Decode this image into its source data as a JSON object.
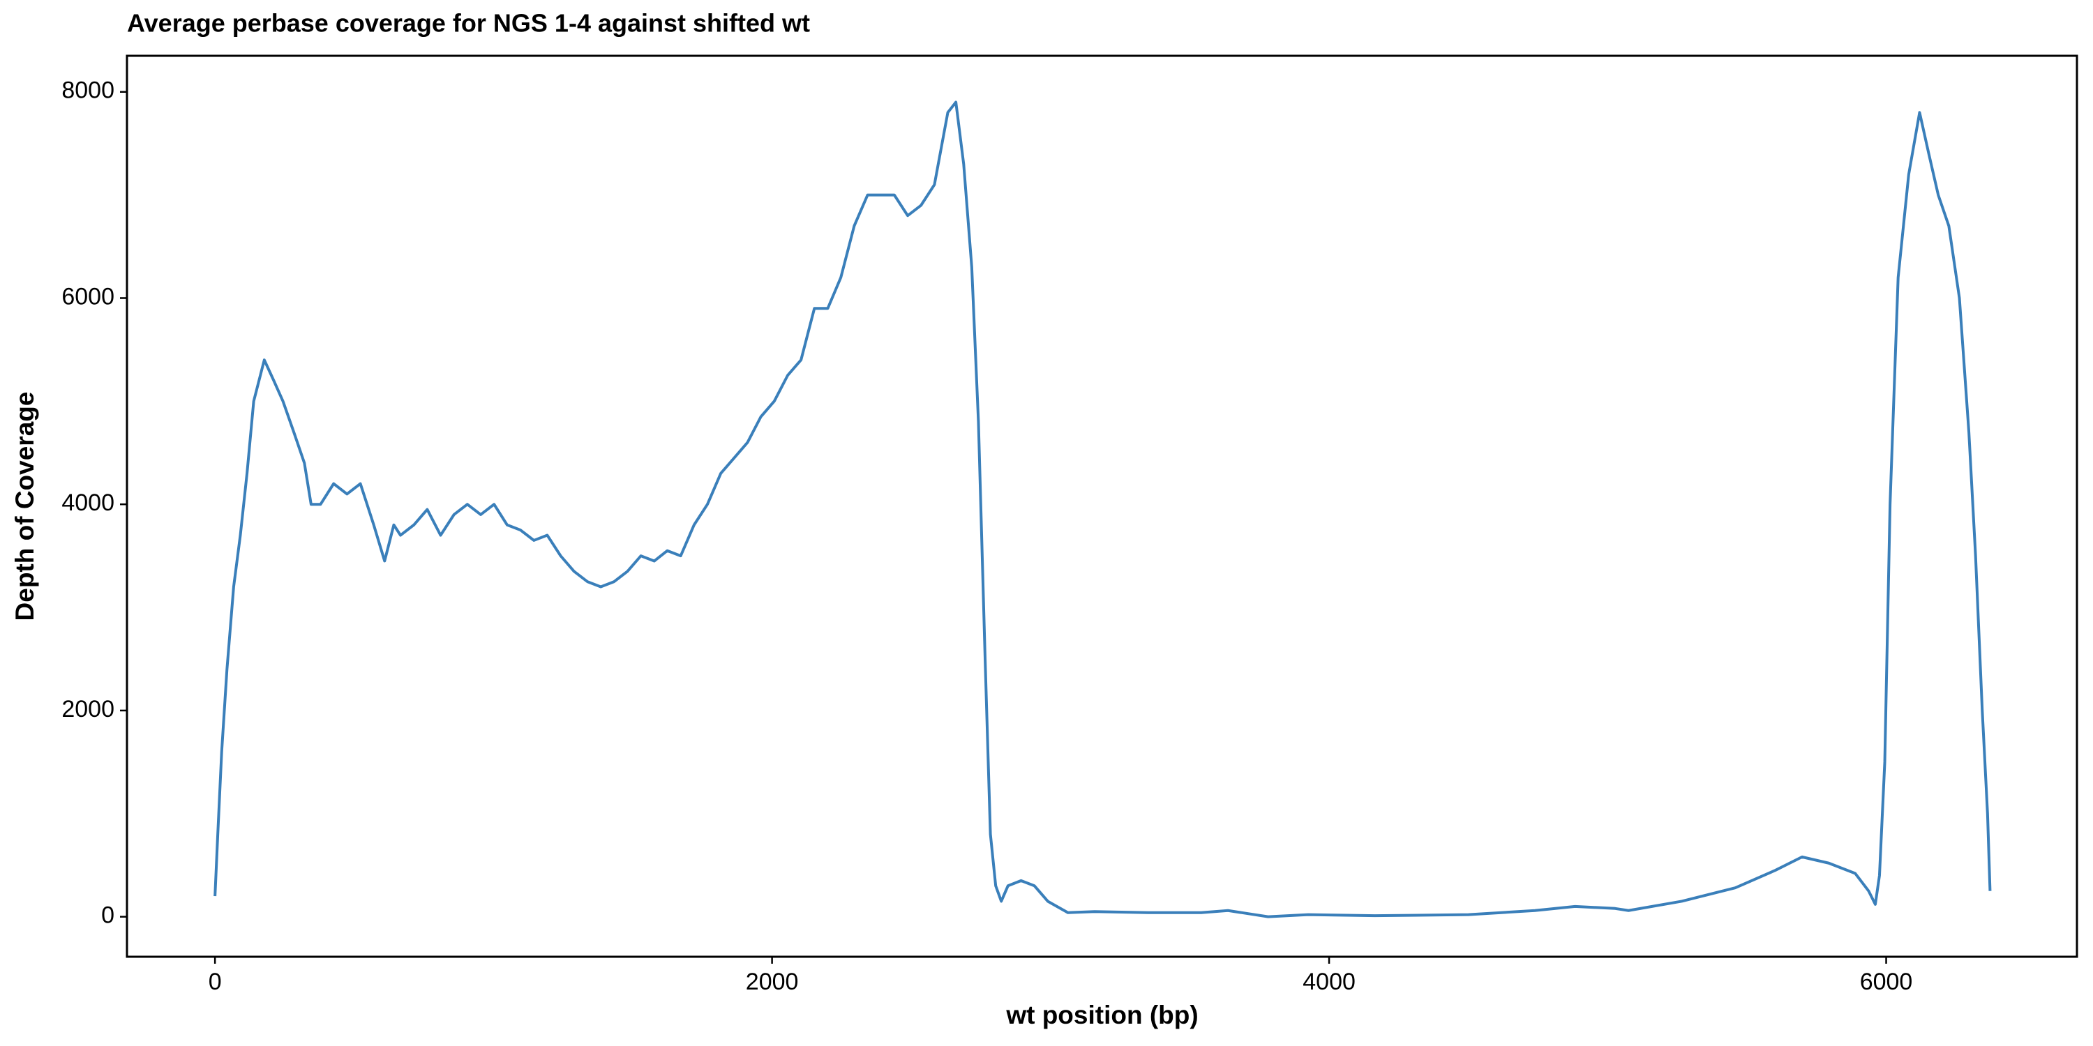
{
  "chart_data": {
    "type": "line",
    "title": "Average perbase coverage for NGS 1-4 against shifted wt",
    "x_label": "wt position (bp)",
    "y_label": "Depth of Coverage",
    "x": [
      0,
      10,
      24,
      43,
      67,
      91,
      115,
      139,
      177,
      211,
      244,
      283,
      321,
      345,
      379,
      426,
      474,
      522,
      570,
      609,
      642,
      666,
      714,
      762,
      810,
      858,
      906,
      954,
      1002,
      1049,
      1097,
      1145,
      1193,
      1241,
      1289,
      1337,
      1385,
      1433,
      1481,
      1529,
      1577,
      1624,
      1672,
      1720,
      1768,
      1816,
      1864,
      1912,
      1960,
      2008,
      2056,
      2104,
      2152,
      2200,
      2247,
      2295,
      2343,
      2391,
      2439,
      2487,
      2535,
      2583,
      2631,
      2660,
      2688,
      2717,
      2741,
      2765,
      2784,
      2803,
      2823,
      2847,
      2894,
      2942,
      2990,
      3062,
      3158,
      3350,
      3541,
      3637,
      3709,
      3781,
      3925,
      4164,
      4500,
      4739,
      4883,
      5027,
      5075,
      5266,
      5458,
      5602,
      5698,
      5794,
      5889,
      5937,
      5961,
      5976,
      5995,
      6014,
      6043,
      6081,
      6120,
      6153,
      6187,
      6225,
      6263,
      6297,
      6321,
      6345,
      6364,
      6373
    ],
    "series": [
      {
        "name": "coverage",
        "color": "#3a7fba",
        "values": [
          200,
          800,
          1600,
          2400,
          3200,
          3700,
          4300,
          5000,
          5400,
          5200,
          5000,
          4700,
          4400,
          4000,
          4000,
          4200,
          4100,
          4200,
          3800,
          3450,
          3800,
          3700,
          3800,
          3950,
          3700,
          3900,
          4000,
          3900,
          4000,
          3800,
          3750,
          3650,
          3700,
          3500,
          3350,
          3250,
          3200,
          3250,
          3350,
          3500,
          3450,
          3550,
          3500,
          3800,
          4000,
          4300,
          4450,
          4600,
          4850,
          5000,
          5250,
          5400,
          5900,
          5900,
          6200,
          6700,
          7000,
          7000,
          7000,
          6800,
          6900,
          7100,
          7800,
          7900,
          7300,
          6300,
          4800,
          2500,
          800,
          300,
          150,
          300,
          350,
          300,
          150,
          40,
          50,
          40,
          40,
          60,
          30,
          0,
          20,
          10,
          20,
          60,
          100,
          80,
          60,
          150,
          280,
          450,
          580,
          520,
          420,
          250,
          120,
          400,
          1500,
          4000,
          6200,
          7200,
          7800,
          7400,
          7000,
          6700,
          6000,
          4700,
          3500,
          2000,
          1000,
          250
        ]
      }
    ],
    "xlim": [
      -316,
      6685
    ],
    "ylim": [
      -388,
      8350
    ],
    "xticks": [
      0,
      2000,
      4000,
      6000
    ],
    "yticks": [
      0,
      2000,
      4000,
      6000,
      8000
    ],
    "grid": false
  }
}
